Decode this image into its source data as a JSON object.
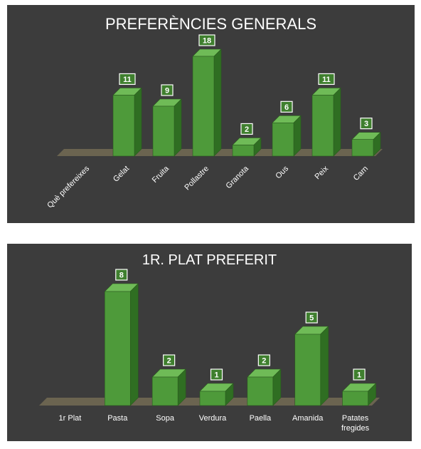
{
  "chart_data": [
    {
      "type": "bar",
      "title": "PREFERÈNCIES GENERALS",
      "categories": [
        "Què prefereixes",
        "Gelat",
        "Fruita",
        "Pollastre",
        "Granota",
        "Ous",
        "Peix",
        "Carn"
      ],
      "values": [
        null,
        11,
        9,
        18,
        2,
        6,
        11,
        3
      ],
      "data_labels": [
        "",
        "11",
        "9",
        "18",
        "2",
        "6",
        "11",
        "3"
      ],
      "xlabel": "",
      "ylabel": "",
      "ylim": [
        0,
        18
      ],
      "grid": false,
      "legend": "none",
      "bar_style": "3d"
    },
    {
      "type": "bar",
      "title": "1R. PLAT PREFERIT",
      "categories": [
        "1r Plat",
        "Pasta",
        "Sopa",
        "Verdura",
        "Paella",
        "Amanida",
        "Patates fregides"
      ],
      "values": [
        null,
        8,
        2,
        1,
        2,
        5,
        1
      ],
      "data_labels": [
        "",
        "8",
        "2",
        "1",
        "2",
        "5",
        "1"
      ],
      "xlabel": "",
      "ylabel": "",
      "ylim": [
        0,
        8
      ],
      "grid": false,
      "legend": "none",
      "bar_style": "3d"
    }
  ],
  "colors": {
    "background": "#3c3c3c",
    "bar_front": "#4e9a3a",
    "bar_side": "#2f6e22",
    "bar_top": "#6fbb57",
    "floor": "#6b6450",
    "label_box": "#3f7f2e",
    "text": "#ffffff"
  }
}
